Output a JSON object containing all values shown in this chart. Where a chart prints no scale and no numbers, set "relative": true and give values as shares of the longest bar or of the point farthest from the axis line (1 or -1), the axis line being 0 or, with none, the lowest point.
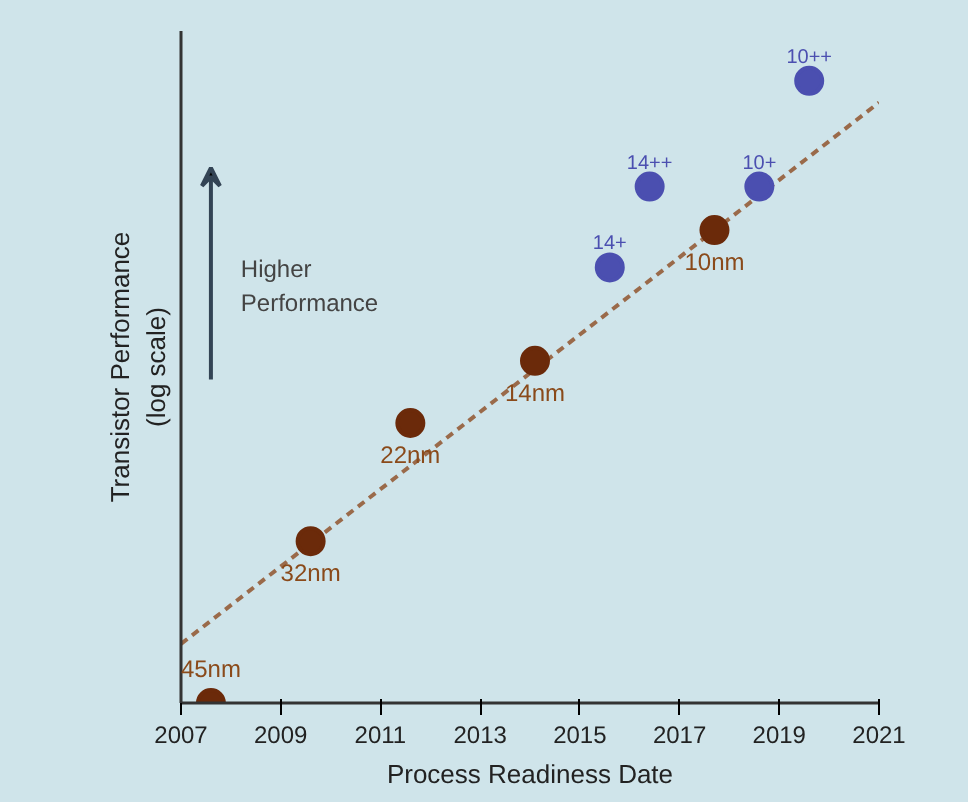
{
  "chart_data": {
    "type": "scatter",
    "xlabel": "Process Readiness Date",
    "ylabel": "Transistor Performance\n(log scale)",
    "relative": true,
    "xlim": [
      2007,
      2021
    ],
    "xticks": [
      2007,
      2009,
      2011,
      2013,
      2015,
      2017,
      2019,
      2021
    ],
    "tick_labels": "x",
    "grid": false,
    "series": [
      {
        "color": "#6b2a0a",
        "marker": "circle",
        "x": [
          2007.6,
          2009.6,
          2011.6,
          2014.1,
          2017.7
        ],
        "values": [
          0,
          0.26,
          0.45,
          0.55,
          0.76
        ]
      },
      {
        "color": "#4b4fb0",
        "marker": "circle",
        "x": [
          2015.6,
          2016.4,
          2018.6,
          2019.6
        ],
        "values": [
          0.7,
          0.83,
          0.83,
          1
        ]
      },
      {
        "type": "line",
        "color": "#9a6a4a",
        "line_style": "dashed",
        "marker": "none",
        "x": [
          2007,
          2021
        ],
        "values": [
          0.095,
          0.965
        ]
      }
    ],
    "annotations": [
      {
        "text": "45nm",
        "x": 2007.6,
        "y": 0
      },
      {
        "text": "32nm",
        "x": 2009.6,
        "y": 0.26
      },
      {
        "text": "22nm",
        "x": 2011.6,
        "y": 0.45
      },
      {
        "text": "14nm",
        "x": 2014.1,
        "y": 0.55
      },
      {
        "text": "10nm",
        "x": 2017.7,
        "y": 0.76
      },
      {
        "text": "14+",
        "x": 2015.6,
        "y": 0.7
      },
      {
        "text": "14++",
        "x": 2016.4,
        "y": 0.83
      },
      {
        "text": "10+",
        "x": 2018.6,
        "y": 0.83
      },
      {
        "text": "10++",
        "x": 2019.6,
        "y": 1
      },
      "Higher\nPerformance"
    ]
  }
}
